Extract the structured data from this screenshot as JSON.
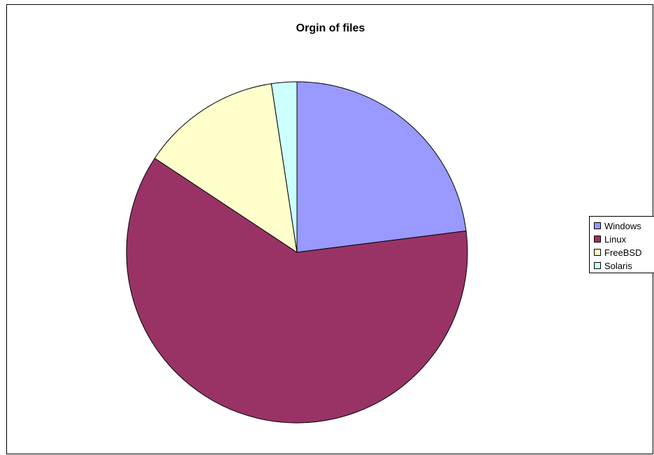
{
  "chart_data": {
    "type": "pie",
    "title": "Orgin of files",
    "categories": [
      "Windows",
      "Linux",
      "FreeBSD",
      "Solaris"
    ],
    "values": [
      23.0,
      61.3,
      13.3,
      2.4
    ],
    "colors": [
      "#9999ff",
      "#993366",
      "#ffffcc",
      "#ccffff"
    ],
    "start_angle_deg": 0,
    "direction": "clockwise",
    "legend_position": "right"
  }
}
